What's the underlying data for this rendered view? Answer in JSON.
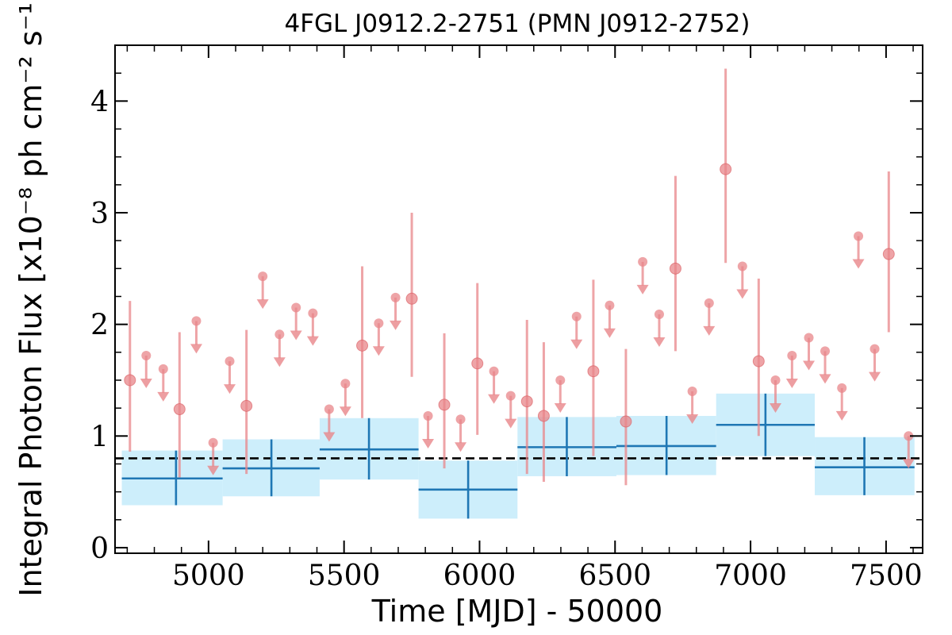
{
  "chart_data": {
    "type": "scatter",
    "title": "4FGL J0912.2-2751 (PMN J0912-2752)",
    "xlabel": "Time [MJD] - 50000",
    "ylabel": "Integral Photon Flux [x10⁻⁸ ph cm⁻² s⁻¹]",
    "xlim": [
      4655,
      7635
    ],
    "ylim": [
      -0.05,
      4.5
    ],
    "x_ticks": [
      5000,
      5500,
      6000,
      6500,
      7000,
      7500
    ],
    "y_ticks": [
      0,
      1,
      2,
      3,
      4
    ],
    "grid": false,
    "mean_flux": 0.8,
    "colors": {
      "points": "#e8868a",
      "yearly": "#1f77b4",
      "band": "#cdeefb",
      "mean_line": "#000000"
    },
    "series": [
      {
        "kind": "monthly_detections",
        "points": [
          {
            "x": 4710,
            "y": 1.5,
            "ylo": 0.86,
            "yhi": 2.21
          },
          {
            "x": 4893,
            "y": 1.24,
            "ylo": 0.63,
            "yhi": 1.93
          },
          {
            "x": 5140,
            "y": 1.27,
            "ylo": 0.66,
            "yhi": 1.95
          },
          {
            "x": 5567,
            "y": 1.81,
            "ylo": 1.16,
            "yhi": 2.52
          },
          {
            "x": 5750,
            "y": 2.23,
            "ylo": 1.53,
            "yhi": 3.0
          },
          {
            "x": 5870,
            "y": 1.28,
            "ylo": 0.71,
            "yhi": 1.92
          },
          {
            "x": 5992,
            "y": 1.65,
            "ylo": 1.01,
            "yhi": 2.37
          },
          {
            "x": 6175,
            "y": 1.31,
            "ylo": 0.66,
            "yhi": 2.04
          },
          {
            "x": 6237,
            "y": 1.18,
            "ylo": 0.59,
            "yhi": 1.84
          },
          {
            "x": 6420,
            "y": 1.58,
            "ylo": 0.82,
            "yhi": 2.4
          },
          {
            "x": 6540,
            "y": 1.13,
            "ylo": 0.56,
            "yhi": 1.78
          },
          {
            "x": 6723,
            "y": 2.5,
            "ylo": 1.76,
            "yhi": 3.33
          },
          {
            "x": 6908,
            "y": 3.39,
            "ylo": 2.55,
            "yhi": 4.29
          },
          {
            "x": 7030,
            "y": 1.67,
            "ylo": 1.0,
            "yhi": 2.41
          },
          {
            "x": 7510,
            "y": 2.63,
            "ylo": 1.93,
            "yhi": 3.37
          }
        ]
      },
      {
        "kind": "monthly_upper_limits",
        "points": [
          {
            "x": 4770,
            "y": 1.72
          },
          {
            "x": 4833,
            "y": 1.6
          },
          {
            "x": 4955,
            "y": 2.03
          },
          {
            "x": 5017,
            "y": 0.94
          },
          {
            "x": 5078,
            "y": 1.67
          },
          {
            "x": 5200,
            "y": 2.43
          },
          {
            "x": 5262,
            "y": 1.91
          },
          {
            "x": 5323,
            "y": 2.15
          },
          {
            "x": 5385,
            "y": 2.1
          },
          {
            "x": 5445,
            "y": 1.24
          },
          {
            "x": 5505,
            "y": 1.47
          },
          {
            "x": 5628,
            "y": 2.01
          },
          {
            "x": 5690,
            "y": 2.24
          },
          {
            "x": 5810,
            "y": 1.18
          },
          {
            "x": 5930,
            "y": 1.15
          },
          {
            "x": 6053,
            "y": 1.58
          },
          {
            "x": 6115,
            "y": 1.36
          },
          {
            "x": 6298,
            "y": 1.5
          },
          {
            "x": 6358,
            "y": 2.07
          },
          {
            "x": 6480,
            "y": 2.17
          },
          {
            "x": 6602,
            "y": 2.56
          },
          {
            "x": 6663,
            "y": 2.09
          },
          {
            "x": 6785,
            "y": 1.4
          },
          {
            "x": 6847,
            "y": 2.19
          },
          {
            "x": 6970,
            "y": 2.52
          },
          {
            "x": 7092,
            "y": 1.5
          },
          {
            "x": 7153,
            "y": 1.72
          },
          {
            "x": 7215,
            "y": 1.88
          },
          {
            "x": 7275,
            "y": 1.76
          },
          {
            "x": 7337,
            "y": 1.43
          },
          {
            "x": 7398,
            "y": 2.79
          },
          {
            "x": 7458,
            "y": 1.78
          },
          {
            "x": 7583,
            "y": 1.0
          }
        ]
      },
      {
        "kind": "yearly_bins",
        "bins": [
          {
            "x0": 4680,
            "x1": 5052,
            "x": 4880,
            "y": 0.62,
            "ylo": 0.38,
            "yhi": 0.87
          },
          {
            "x0": 5052,
            "x1": 5410,
            "x": 5232,
            "y": 0.71,
            "ylo": 0.46,
            "yhi": 0.97
          },
          {
            "x0": 5410,
            "x1": 5775,
            "x": 5592,
            "y": 0.88,
            "ylo": 0.61,
            "yhi": 1.16
          },
          {
            "x0": 5775,
            "x1": 6140,
            "x": 5958,
            "y": 0.52,
            "ylo": 0.26,
            "yhi": 0.78
          },
          {
            "x0": 6140,
            "x1": 6505,
            "x": 6322,
            "y": 0.9,
            "ylo": 0.64,
            "yhi": 1.17
          },
          {
            "x0": 6505,
            "x1": 6873,
            "x": 6690,
            "y": 0.91,
            "ylo": 0.65,
            "yhi": 1.18
          },
          {
            "x0": 6873,
            "x1": 7237,
            "x": 7055,
            "y": 1.1,
            "ylo": 0.82,
            "yhi": 1.38
          },
          {
            "x0": 7237,
            "x1": 7605,
            "x": 7420,
            "y": 0.72,
            "ylo": 0.47,
            "yhi": 0.99
          }
        ]
      }
    ]
  }
}
